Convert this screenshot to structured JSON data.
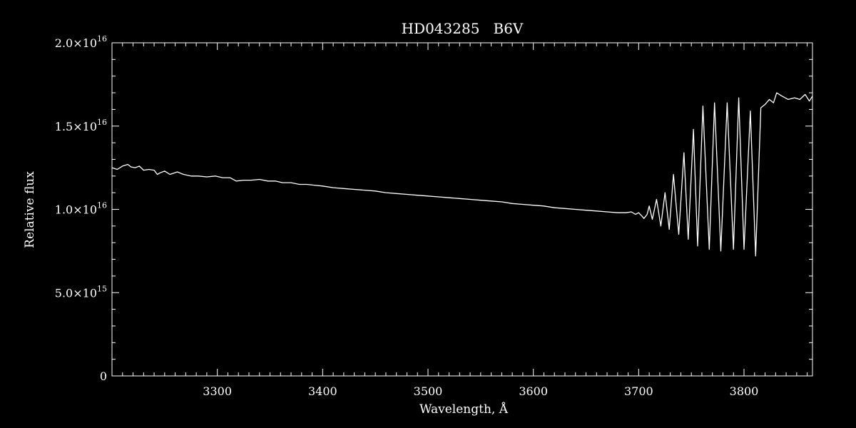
{
  "chart_data": {
    "type": "line",
    "title": "HD043285   B6V",
    "xlabel": "Wavelength, Å",
    "ylabel": "Relative flux",
    "xlim": [
      3200,
      3865
    ],
    "ylim": [
      0,
      2e+16
    ],
    "x_ticks": [
      {
        "value": 3300,
        "label": "3300"
      },
      {
        "value": 3400,
        "label": "3400"
      },
      {
        "value": 3500,
        "label": "3500"
      },
      {
        "value": 3600,
        "label": "3600"
      },
      {
        "value": 3700,
        "label": "3700"
      },
      {
        "value": 3800,
        "label": "3800"
      }
    ],
    "y_ticks": [
      {
        "value": 0,
        "mantissa": "0",
        "exponent": ""
      },
      {
        "value": 5000000000000000.0,
        "mantissa": "5.0×10",
        "exponent": "15"
      },
      {
        "value": 1e+16,
        "mantissa": "1.0×10",
        "exponent": "16"
      },
      {
        "value": 1.5e+16,
        "mantissa": "1.5×10",
        "exponent": "16"
      },
      {
        "value": 2e+16,
        "mantissa": "2.0×10",
        "exponent": "16"
      }
    ],
    "grid": false,
    "line_color": "#ffffff",
    "background": "#000000",
    "series": [
      {
        "x": [
          3200,
          3205,
          3210,
          3215,
          3218,
          3222,
          3226,
          3230,
          3235,
          3240,
          3243,
          3246,
          3250,
          3255,
          3262,
          3268,
          3275,
          3282,
          3290,
          3298,
          3305,
          3312,
          3318,
          3325,
          3332,
          3340,
          3348,
          3355,
          3362,
          3370,
          3378,
          3385,
          3392,
          3400,
          3410,
          3420,
          3430,
          3440,
          3450,
          3460,
          3470,
          3480,
          3490,
          3500,
          3510,
          3520,
          3530,
          3540,
          3550,
          3560,
          3570,
          3580,
          3590,
          3600,
          3610,
          3620,
          3630,
          3640,
          3650,
          3660,
          3670,
          3680,
          3688,
          3693,
          3697,
          3700,
          3703,
          3705,
          3708,
          3710,
          3713,
          3717,
          3721,
          3725,
          3729,
          3733,
          3738,
          3743,
          3747,
          3752,
          3756,
          3761,
          3767,
          3772,
          3778,
          3784,
          3790,
          3795,
          3800,
          3806,
          3811,
          3816,
          3820,
          3824,
          3828,
          3831,
          3836,
          3842,
          3848,
          3853,
          3858,
          3862,
          3865
        ],
        "y": [
          1.25e+16,
          1.24e+16,
          1.26e+16,
          1.27e+16,
          1.255e+16,
          1.25e+16,
          1.26e+16,
          1.235e+16,
          1.24e+16,
          1.235e+16,
          1.21e+16,
          1.22e+16,
          1.23e+16,
          1.21e+16,
          1.225e+16,
          1.21e+16,
          1.2e+16,
          1.2e+16,
          1.195e+16,
          1.2e+16,
          1.19e+16,
          1.19e+16,
          1.17e+16,
          1.175e+16,
          1.175e+16,
          1.18e+16,
          1.17e+16,
          1.17e+16,
          1.16e+16,
          1.16e+16,
          1.15e+16,
          1.15e+16,
          1.145e+16,
          1.14e+16,
          1.13e+16,
          1.125e+16,
          1.12e+16,
          1.115e+16,
          1.11e+16,
          1.1e+16,
          1.095e+16,
          1.09e+16,
          1.085e+16,
          1.08e+16,
          1.075e+16,
          1.07e+16,
          1.065e+16,
          1.06e+16,
          1.055e+16,
          1.05e+16,
          1.045e+16,
          1.035e+16,
          1.03e+16,
          1.025e+16,
          1.02e+16,
          1.01e+16,
          1.005e+16,
          1e+16,
          9950000000000000.0,
          9900000000000000.0,
          9850000000000000.0,
          9800000000000000.0,
          9800000000000000.0,
          9850000000000000.0,
          9700000000000000.0,
          9800000000000000.0,
          9600000000000000.0,
          9450000000000000.0,
          9700000000000000.0,
          1.02e+16,
          9400000000000000.0,
          1.06e+16,
          9000000000000000.0,
          1.1e+16,
          8800000000000000.0,
          1.21e+16,
          8500000000000000.0,
          1.34e+16,
          8200000000000000.0,
          1.48e+16,
          7800000000000000.0,
          1.62e+16,
          7600000000000000.0,
          1.64e+16,
          7500000000000000.0,
          1.64e+16,
          7600000000000000.0,
          1.67e+16,
          7600000000000000.0,
          1.59e+16,
          7200000000000000.0,
          1.61e+16,
          1.63e+16,
          1.66e+16,
          1.64e+16,
          1.7e+16,
          1.68e+16,
          1.66e+16,
          1.67e+16,
          1.66e+16,
          1.69e+16,
          1.65e+16,
          1.68e+16
        ]
      }
    ]
  }
}
